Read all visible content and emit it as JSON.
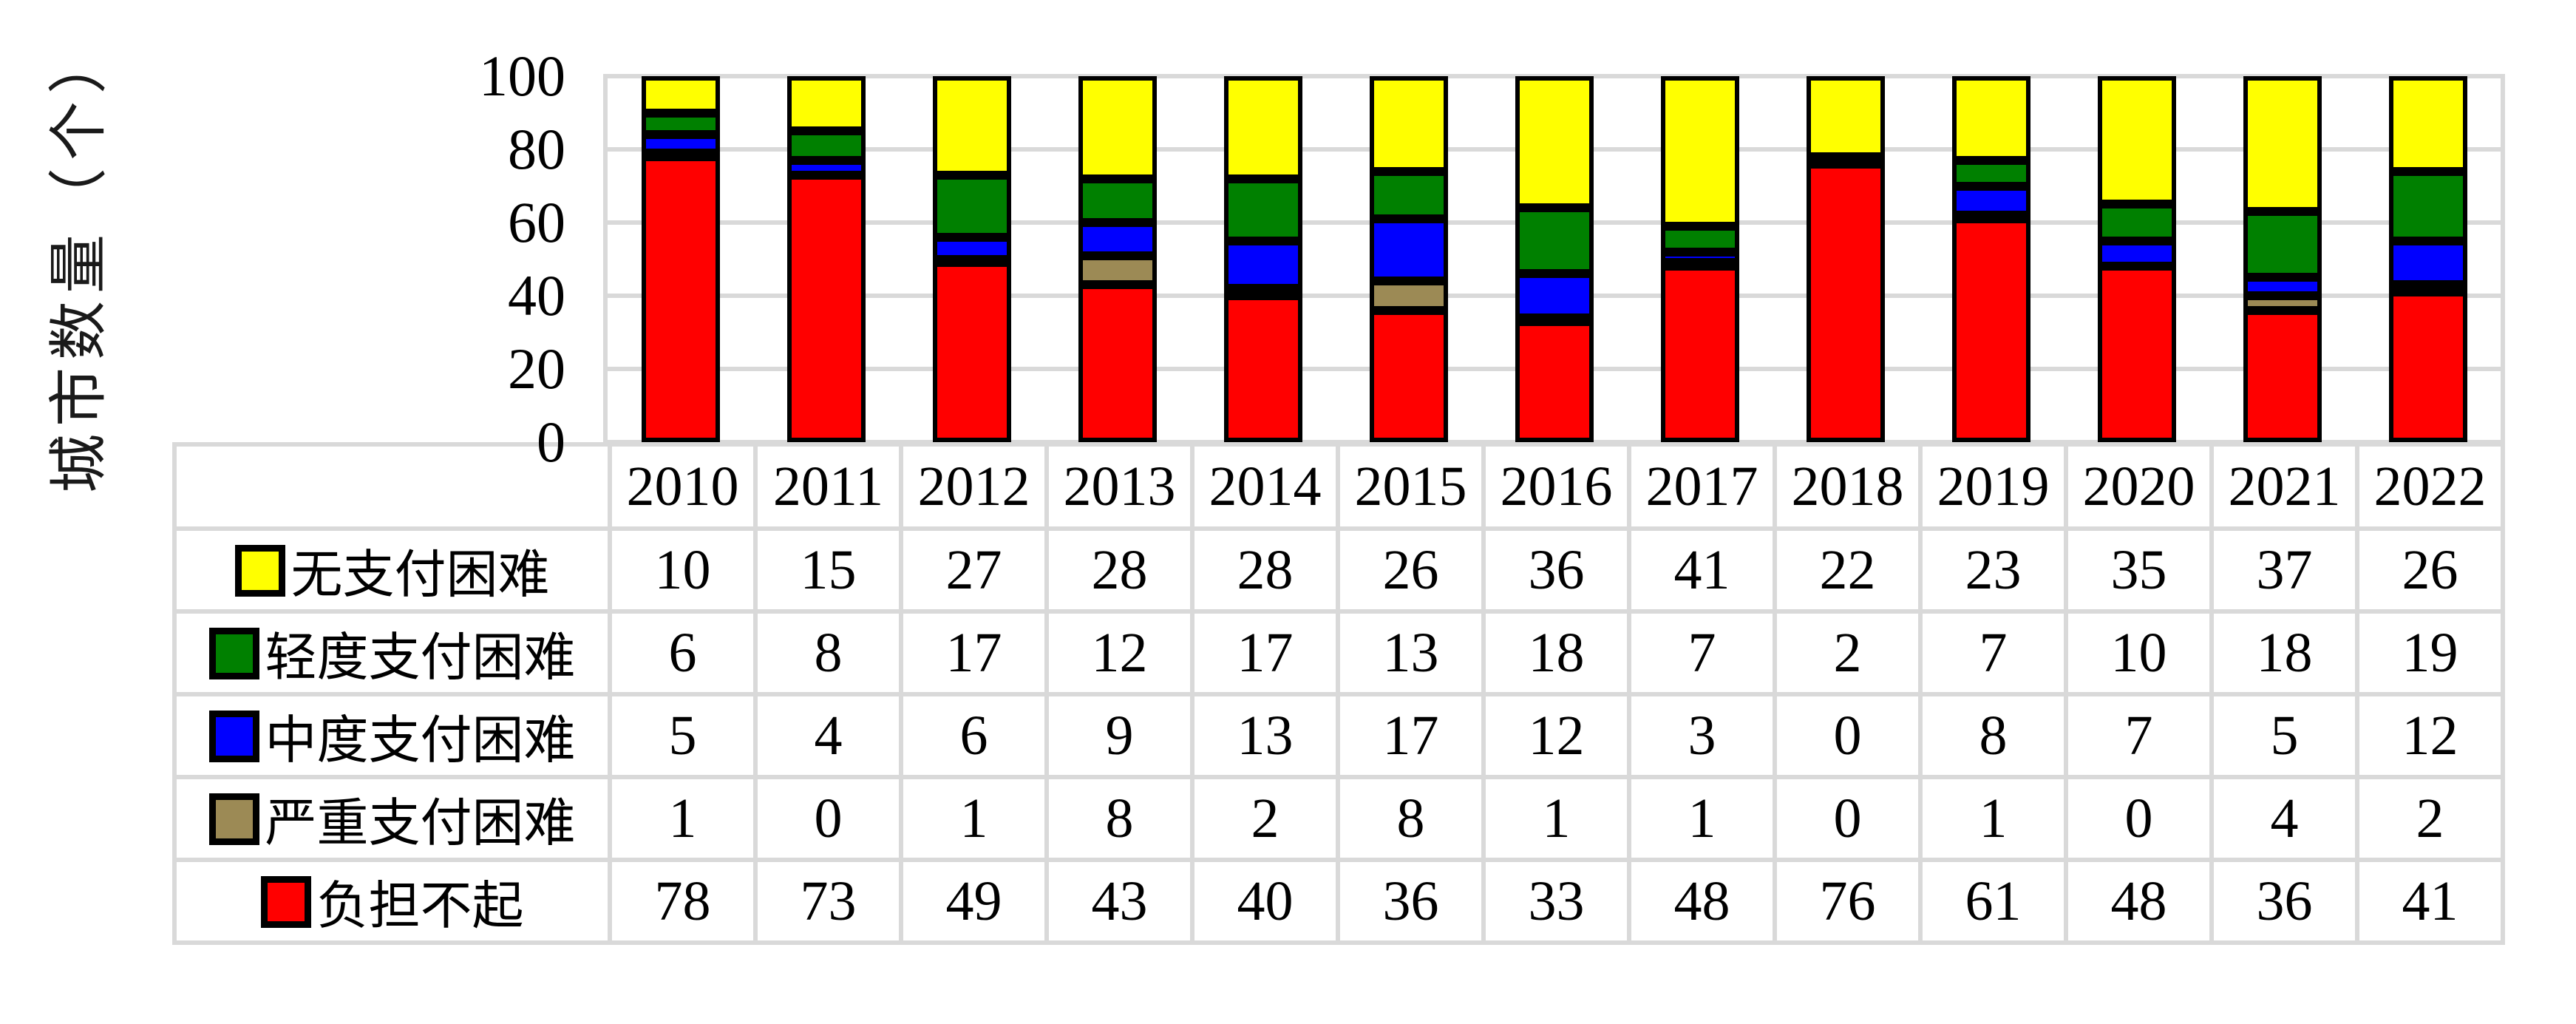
{
  "y_axis": {
    "title": "城市数量（个）",
    "ticks": [
      0,
      20,
      40,
      60,
      80,
      100
    ]
  },
  "chart_data": {
    "type": "bar",
    "stacked": true,
    "title": "",
    "xlabel": "",
    "ylabel": "城市数量（个）",
    "ylim": [
      0,
      100
    ],
    "grid": true,
    "legend_position": "table-left-below",
    "categories": [
      "2010",
      "2011",
      "2012",
      "2013",
      "2014",
      "2015",
      "2016",
      "2017",
      "2018",
      "2019",
      "2020",
      "2021",
      "2022"
    ],
    "series": [
      {
        "name": "无支付困难",
        "color": "#ffff00",
        "values": [
          10,
          15,
          27,
          28,
          28,
          26,
          36,
          41,
          22,
          23,
          35,
          37,
          26
        ]
      },
      {
        "name": "轻度支付困难",
        "color": "#008000",
        "values": [
          6,
          8,
          17,
          12,
          17,
          13,
          18,
          7,
          2,
          7,
          10,
          18,
          19
        ]
      },
      {
        "name": "中度支付困难",
        "color": "#0000ff",
        "values": [
          5,
          4,
          6,
          9,
          13,
          17,
          12,
          3,
          0,
          8,
          7,
          5,
          12
        ]
      },
      {
        "name": "严重支付困难",
        "color": "#9c8a55",
        "values": [
          1,
          0,
          1,
          8,
          2,
          8,
          1,
          1,
          0,
          1,
          0,
          4,
          2
        ]
      },
      {
        "name": "负担不起",
        "color": "#ff0000",
        "values": [
          78,
          73,
          49,
          43,
          40,
          36,
          33,
          48,
          76,
          61,
          48,
          36,
          41
        ]
      }
    ],
    "stack_order_bottom_to_top": [
      "负担不起",
      "严重支付困难",
      "中度支付困难",
      "轻度支付困难",
      "无支付困难"
    ]
  }
}
